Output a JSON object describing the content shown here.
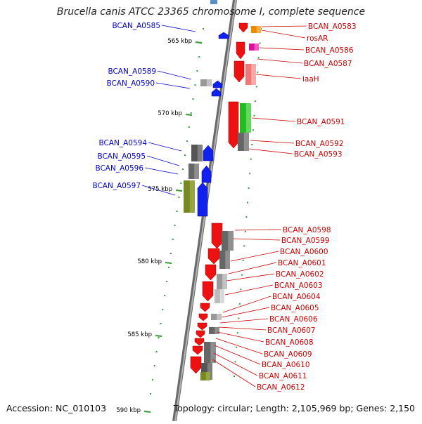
{
  "title": "Brucella canis ATCC 23365 chromosome I, complete sequence",
  "footer": {
    "accession": "Accession: NC_010103",
    "topology": "Topology: circular; Length: 2,105,969 bp; Genes: 2,150"
  },
  "colors": {
    "left_label": "#0000cc",
    "right_label": "#cc0000",
    "tick": "#339933",
    "backbone": "#888888"
  },
  "scale": {
    "unit": "kbp",
    "ticks": [
      {
        "kbp": 565,
        "label": "565 kbp"
      },
      {
        "kbp": 570,
        "label": "570 kbp"
      },
      {
        "kbp": 575,
        "label": "575 kbp"
      },
      {
        "kbp": 580,
        "label": "580 kbp"
      },
      {
        "kbp": 585,
        "label": "585 kbp"
      },
      {
        "kbp": 590,
        "label": "590 kbp"
      }
    ]
  },
  "genes": {
    "left": [
      {
        "label": "BCAN_A0585"
      },
      {
        "label": "BCAN_A0589"
      },
      {
        "label": "BCAN_A0590"
      },
      {
        "label": "BCAN_A0594"
      },
      {
        "label": "BCAN_A0595"
      },
      {
        "label": "BCAN_A0596"
      },
      {
        "label": "BCAN_A0597"
      }
    ],
    "right": [
      {
        "label": "BCAN_A0583"
      },
      {
        "label": "rosAR"
      },
      {
        "label": "BCAN_A0586"
      },
      {
        "label": "BCAN_A0587"
      },
      {
        "label": "iaaH"
      },
      {
        "label": "BCAN_A0591"
      },
      {
        "label": "BCAN_A0592"
      },
      {
        "label": "BCAN_A0593"
      },
      {
        "label": "BCAN_A0598"
      },
      {
        "label": "BCAN_A0599"
      },
      {
        "label": "BCAN_A0600"
      },
      {
        "label": "BCAN_A0601"
      },
      {
        "label": "BCAN_A0602"
      },
      {
        "label": "BCAN_A0603"
      },
      {
        "label": "BCAN_A0604"
      },
      {
        "label": "BCAN_A0605"
      },
      {
        "label": "BCAN_A0606"
      },
      {
        "label": "BCAN_A0607"
      },
      {
        "label": "BCAN_A0608"
      },
      {
        "label": "BCAN_A0609"
      },
      {
        "label": "BCAN_A0610"
      },
      {
        "label": "BCAN_A0611"
      },
      {
        "label": "BCAN_A0612"
      }
    ]
  }
}
